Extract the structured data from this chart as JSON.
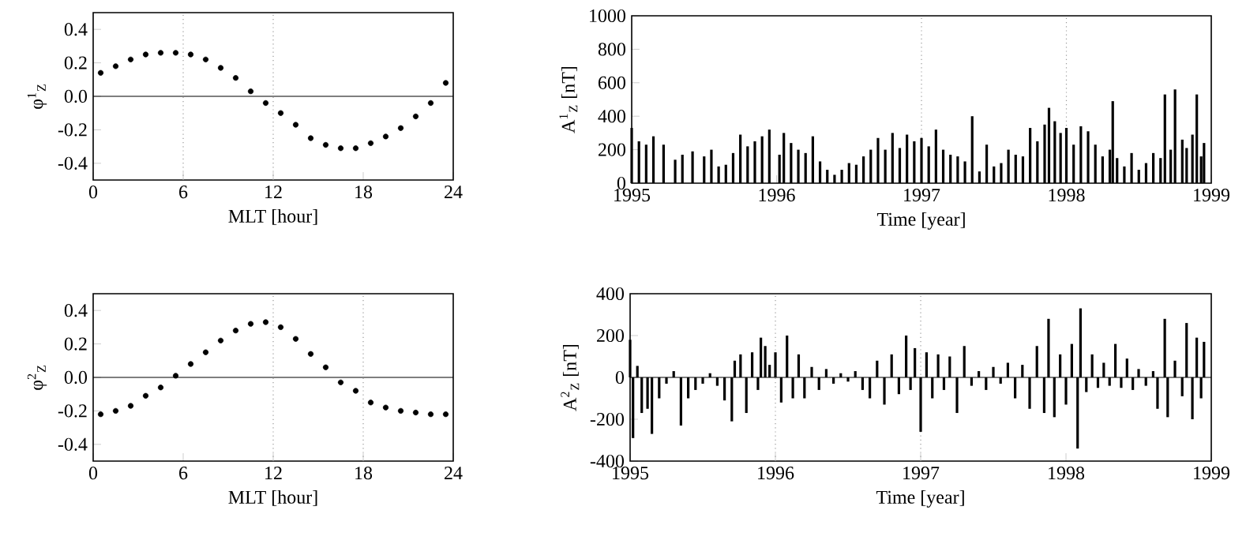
{
  "chart_data": [
    {
      "type": "scatter",
      "xlabel": "MLT [hour]",
      "ylabel": "φ$^{1}$$_{Z}$",
      "marker": "circle",
      "color": "#000000",
      "x": [
        0.5,
        1.5,
        2.5,
        3.5,
        4.5,
        5.5,
        6.5,
        7.5,
        8.5,
        9.5,
        10.5,
        11.5,
        12.5,
        13.5,
        14.5,
        15.5,
        16.5,
        17.5,
        18.5,
        19.5,
        20.5,
        21.5,
        22.5,
        23.5
      ],
      "values": [
        0.14,
        0.18,
        0.22,
        0.25,
        0.26,
        0.26,
        0.25,
        0.22,
        0.17,
        0.11,
        0.03,
        -0.04,
        -0.1,
        -0.17,
        -0.25,
        -0.29,
        -0.31,
        -0.31,
        -0.28,
        -0.24,
        -0.19,
        -0.12,
        -0.04,
        0.08
      ],
      "xlim": [
        0,
        24
      ],
      "xticks": [
        0,
        6,
        12,
        18,
        24
      ],
      "ylim": [
        -0.5,
        0.5
      ],
      "yticks": [
        -0.4,
        -0.2,
        {
          "value": 0,
          "label": "0.0"
        },
        0.2,
        0.4
      ],
      "ref_lines": [
        {
          "axis": "y",
          "value": 0,
          "color": "#000000",
          "line_style": "solid"
        },
        {
          "axis": "x",
          "value": 6,
          "color": "#999999",
          "line_style": "dotted"
        },
        {
          "axis": "x",
          "value": 12,
          "color": "#999999",
          "line_style": "dotted"
        }
      ]
    },
    {
      "type": "bar",
      "xlabel": "Time [year]",
      "ylabel": "A$^{1}$$_{Z}$ [nT]",
      "color": "#000000",
      "x": [
        1995.0,
        1995.05,
        1995.1,
        1995.15,
        1995.22,
        1995.3,
        1995.35,
        1995.42,
        1995.5,
        1995.55,
        1995.6,
        1995.65,
        1995.7,
        1995.75,
        1995.8,
        1995.85,
        1995.9,
        1995.95,
        1996.02,
        1996.05,
        1996.1,
        1996.15,
        1996.2,
        1996.25,
        1996.3,
        1996.35,
        1996.4,
        1996.45,
        1996.5,
        1996.55,
        1996.6,
        1996.65,
        1996.7,
        1996.75,
        1996.8,
        1996.85,
        1996.9,
        1996.95,
        1997.0,
        1997.05,
        1997.1,
        1997.15,
        1997.2,
        1997.25,
        1997.3,
        1997.35,
        1997.4,
        1997.45,
        1997.5,
        1997.55,
        1997.6,
        1997.65,
        1997.7,
        1997.75,
        1997.8,
        1997.85,
        1997.88,
        1997.92,
        1997.96,
        1998.0,
        1998.05,
        1998.1,
        1998.15,
        1998.2,
        1998.25,
        1998.3,
        1998.32,
        1998.35,
        1998.4,
        1998.45,
        1998.5,
        1998.55,
        1998.6,
        1998.65,
        1998.68,
        1998.72,
        1998.75,
        1998.8,
        1998.83,
        1998.87,
        1998.9,
        1998.93,
        1998.95
      ],
      "values": [
        330,
        250,
        230,
        280,
        230,
        140,
        170,
        190,
        160,
        200,
        100,
        110,
        180,
        290,
        220,
        250,
        280,
        320,
        170,
        300,
        240,
        200,
        180,
        280,
        130,
        80,
        50,
        80,
        120,
        110,
        160,
        200,
        270,
        200,
        300,
        210,
        290,
        250,
        270,
        220,
        320,
        200,
        170,
        160,
        130,
        400,
        70,
        230,
        100,
        120,
        200,
        170,
        160,
        330,
        250,
        350,
        450,
        370,
        300,
        330,
        230,
        340,
        310,
        230,
        160,
        200,
        490,
        150,
        100,
        180,
        80,
        120,
        180,
        150,
        530,
        200,
        560,
        260,
        210,
        290,
        530,
        160,
        240
      ],
      "xlim": [
        1995,
        1999
      ],
      "xticks": [
        1995,
        1996,
        1997,
        1998,
        1999
      ],
      "ylim": [
        0,
        1000
      ],
      "yticks": [
        0,
        200,
        400,
        600,
        800,
        1000
      ],
      "ref_lines": [
        {
          "axis": "x",
          "value": 1997,
          "color": "#999999",
          "line_style": "dotted"
        },
        {
          "axis": "x",
          "value": 1998,
          "color": "#999999",
          "line_style": "dotted"
        }
      ]
    },
    {
      "type": "scatter",
      "xlabel": "MLT [hour]",
      "ylabel": "φ$^{2}$$_{Z}$",
      "marker": "circle",
      "color": "#000000",
      "x": [
        0.5,
        1.5,
        2.5,
        3.5,
        4.5,
        5.5,
        6.5,
        7.5,
        8.5,
        9.5,
        10.5,
        11.5,
        12.5,
        13.5,
        14.5,
        15.5,
        16.5,
        17.5,
        18.5,
        19.5,
        20.5,
        21.5,
        22.5,
        23.5
      ],
      "values": [
        -0.22,
        -0.2,
        -0.17,
        -0.11,
        -0.06,
        0.01,
        0.08,
        0.15,
        0.22,
        0.28,
        0.32,
        0.33,
        0.3,
        0.23,
        0.14,
        0.06,
        -0.03,
        -0.08,
        -0.15,
        -0.18,
        -0.2,
        -0.21,
        -0.22,
        -0.22
      ],
      "xlim": [
        0,
        24
      ],
      "xticks": [
        0,
        6,
        12,
        18,
        24
      ],
      "ylim": [
        -0.5,
        0.5
      ],
      "yticks": [
        -0.4,
        -0.2,
        {
          "value": 0,
          "label": "0.0"
        },
        0.2,
        0.4
      ],
      "ref_lines": [
        {
          "axis": "y",
          "value": 0,
          "color": "#000000",
          "line_style": "solid"
        },
        {
          "axis": "x",
          "value": 12,
          "color": "#999999",
          "line_style": "dotted"
        },
        {
          "axis": "x",
          "value": 18,
          "color": "#999999",
          "line_style": "dotted"
        }
      ]
    },
    {
      "type": "bar",
      "xlabel": "Time [year]",
      "ylabel": "A$^{2}$$_{Z}$ [nT]",
      "color": "#000000",
      "x": [
        1995.0,
        1995.02,
        1995.05,
        1995.08,
        1995.12,
        1995.15,
        1995.2,
        1995.25,
        1995.3,
        1995.35,
        1995.4,
        1995.45,
        1995.5,
        1995.55,
        1995.6,
        1995.65,
        1995.7,
        1995.72,
        1995.76,
        1995.8,
        1995.84,
        1995.88,
        1995.9,
        1995.93,
        1995.96,
        1996.0,
        1996.04,
        1996.08,
        1996.12,
        1996.16,
        1996.2,
        1996.25,
        1996.3,
        1996.35,
        1996.4,
        1996.45,
        1996.5,
        1996.55,
        1996.6,
        1996.65,
        1996.7,
        1996.75,
        1996.8,
        1996.85,
        1996.9,
        1996.93,
        1996.96,
        1997.0,
        1997.04,
        1997.08,
        1997.12,
        1997.16,
        1997.2,
        1997.25,
        1997.3,
        1997.35,
        1997.4,
        1997.45,
        1997.5,
        1997.55,
        1997.6,
        1997.65,
        1997.7,
        1997.75,
        1997.8,
        1997.85,
        1997.88,
        1997.92,
        1997.96,
        1998.0,
        1998.04,
        1998.08,
        1998.1,
        1998.14,
        1998.18,
        1998.22,
        1998.26,
        1998.3,
        1998.34,
        1998.38,
        1998.42,
        1998.46,
        1998.5,
        1998.55,
        1998.6,
        1998.63,
        1998.68,
        1998.7,
        1998.75,
        1998.8,
        1998.83,
        1998.87,
        1998.9,
        1998.93,
        1998.95
      ],
      "values": [
        180,
        -290,
        55,
        -170,
        -150,
        -270,
        -100,
        -30,
        30,
        -230,
        -100,
        -60,
        -30,
        20,
        -40,
        -110,
        -210,
        80,
        110,
        -170,
        120,
        -60,
        190,
        150,
        60,
        120,
        -120,
        200,
        -100,
        110,
        -100,
        50,
        -60,
        40,
        -30,
        20,
        -20,
        30,
        -60,
        -100,
        80,
        -130,
        110,
        -80,
        200,
        -60,
        140,
        -260,
        120,
        -100,
        110,
        -60,
        100,
        -170,
        150,
        -40,
        30,
        -60,
        50,
        -30,
        70,
        -100,
        60,
        -150,
        150,
        -170,
        280,
        -190,
        110,
        -130,
        160,
        -340,
        330,
        -70,
        110,
        -50,
        70,
        -40,
        160,
        -50,
        90,
        -60,
        40,
        -40,
        30,
        -150,
        280,
        -190,
        80,
        -90,
        260,
        -200,
        190,
        -100,
        170
      ],
      "xlim": [
        1995,
        1999
      ],
      "xticks": [
        1995,
        1996,
        1997,
        1998,
        1999
      ],
      "ylim": [
        -400,
        400
      ],
      "yticks": [
        -400,
        -200,
        0,
        200,
        400
      ],
      "ref_lines": [
        {
          "axis": "y",
          "value": 0,
          "color": "#000000",
          "line_style": "solid"
        },
        {
          "axis": "x",
          "value": 1996,
          "color": "#999999",
          "line_style": "dotted"
        },
        {
          "axis": "x",
          "value": 1997,
          "color": "#999999",
          "line_style": "dotted"
        }
      ]
    }
  ]
}
